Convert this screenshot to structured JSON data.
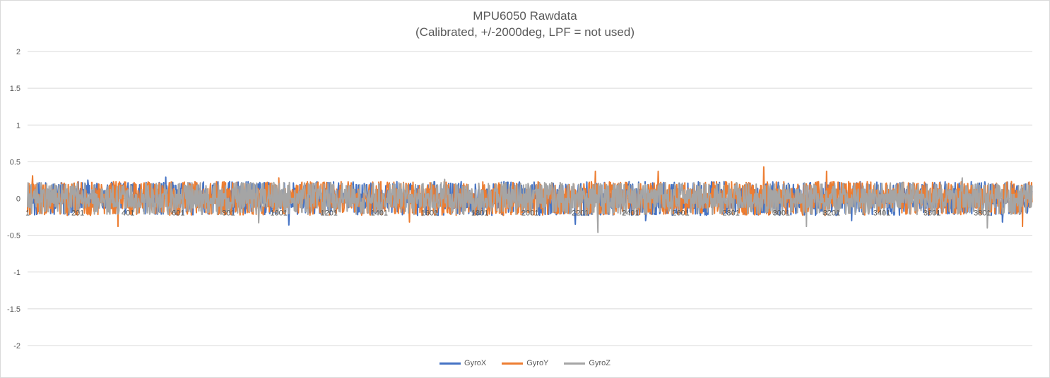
{
  "chart_data": {
    "type": "line",
    "title": "MPU6050 Rawdata",
    "subtitle": "(Calibrated, +/-2000deg, LPF = not used)",
    "xlabel": "",
    "ylabel": "",
    "ylim": [
      -2,
      2
    ],
    "yticks": [
      "2",
      "1.5",
      "1",
      "0.5",
      "0",
      "-0.5",
      "-1",
      "-1.5",
      "-2"
    ],
    "xticks": [
      "1",
      "201",
      "401",
      "601",
      "801",
      "1001",
      "1201",
      "1401",
      "1601",
      "1801",
      "2001",
      "2201",
      "2401",
      "2601",
      "2801",
      "3001",
      "3201",
      "3401",
      "3601",
      "3801"
    ],
    "x_range": [
      1,
      4000
    ],
    "grid": true,
    "legend_position": "bottom",
    "series": [
      {
        "name": "GyroX",
        "color": "#4472c4",
        "amplitude": 0.2,
        "peaks": [
          [
            551,
            0.29
          ],
          [
            1041,
            -0.36
          ],
          [
            2181,
            -0.35
          ],
          [
            2461,
            -0.3
          ],
          [
            3281,
            -0.3
          ],
          [
            3881,
            -0.32
          ],
          [
            241,
            0.25
          ]
        ]
      },
      {
        "name": "GyroY",
        "color": "#ed7d31",
        "amplitude": 0.2,
        "peaks": [
          [
            21,
            0.31
          ],
          [
            361,
            -0.38
          ],
          [
            2261,
            0.37
          ],
          [
            2511,
            0.37
          ],
          [
            2931,
            0.43
          ],
          [
            3181,
            0.37
          ],
          [
            1521,
            -0.32
          ],
          [
            3961,
            -0.38
          ],
          [
            1001,
            0.28
          ]
        ]
      },
      {
        "name": "GyroZ",
        "color": "#a5a5a5",
        "amplitude": 0.19,
        "peaks": [
          [
            2271,
            -0.46
          ],
          [
            3101,
            -0.38
          ],
          [
            3821,
            -0.4
          ],
          [
            1661,
            0.26
          ],
          [
            3721,
            0.28
          ],
          [
            921,
            -0.33
          ]
        ]
      }
    ]
  }
}
